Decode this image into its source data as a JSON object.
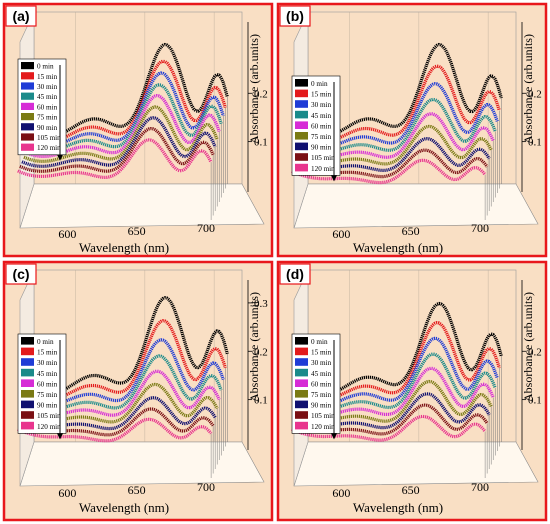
{
  "figure": {
    "colors": {
      "frame": "#e8171c",
      "plot_bg": "#f9dfc4",
      "wall_bg": "#f4ebe1",
      "floor": "#fff8ee",
      "tag_bg": "#ffffff",
      "tag_border": "#e8171c"
    }
  },
  "legend_labels": [
    "0 min",
    "15 min",
    "30 min",
    "45 min",
    "60 min",
    "75 min",
    "90 min",
    "105 min",
    "120 min"
  ],
  "series_colors": [
    "#000000",
    "#e31a1c",
    "#1f3cd6",
    "#1a8a8a",
    "#d62bd6",
    "#7a7a14",
    "#101070",
    "#7a0f14",
    "#e8358e"
  ],
  "chart_data": [
    {
      "type": "line",
      "panel_label": "(a)",
      "style": "3d-waterfall",
      "xlabel": "Wavelength (nm)",
      "ylabel": "Absorbance (arb.units)",
      "x_ticks": [
        "600",
        "650",
        "700"
      ],
      "y_ticks": [
        "0.1",
        "0.2"
      ],
      "xlim": [
        570,
        710
      ],
      "legend_position": "upper-left inside",
      "series_names": [
        "0 min",
        "15 min",
        "30 min",
        "45 min",
        "60 min",
        "75 min",
        "90 min",
        "105 min",
        "120 min"
      ],
      "peaks": [
        {
          "main_nm": 665,
          "main_abs": 0.29,
          "shoulder_nm": 703,
          "shoulder_abs": 0.235
        },
        {
          "main_nm": 665,
          "main_abs": 0.265,
          "shoulder_nm": 703,
          "shoulder_abs": 0.218
        },
        {
          "main_nm": 665,
          "main_abs": 0.25,
          "shoulder_nm": 703,
          "shoulder_abs": 0.208
        },
        {
          "main_nm": 665,
          "main_abs": 0.235,
          "shoulder_nm": 703,
          "shoulder_abs": 0.199
        },
        {
          "main_nm": 665,
          "main_abs": 0.222,
          "shoulder_nm": 703,
          "shoulder_abs": 0.19
        },
        {
          "main_nm": 665,
          "main_abs": 0.208,
          "shoulder_nm": 703,
          "shoulder_abs": 0.18
        },
        {
          "main_nm": 665,
          "main_abs": 0.195,
          "shoulder_nm": 703,
          "shoulder_abs": 0.172
        },
        {
          "main_nm": 665,
          "main_abs": 0.182,
          "shoulder_nm": 703,
          "shoulder_abs": 0.163
        },
        {
          "main_nm": 665,
          "main_abs": 0.168,
          "shoulder_nm": 703,
          "shoulder_abs": 0.155
        }
      ]
    },
    {
      "type": "line",
      "panel_label": "(b)",
      "style": "3d-waterfall",
      "xlabel": "Wavelength (nm)",
      "ylabel": "Absorbance (arb.units)",
      "x_ticks": [
        "600",
        "650",
        "700"
      ],
      "y_ticks": [
        "0.1",
        "0.2"
      ],
      "xlim": [
        570,
        710
      ],
      "legend_position": "left inside",
      "series_names": [
        "0 min",
        "15 min",
        "30 min",
        "45 min",
        "60 min",
        "75 min",
        "90 min",
        "105 min",
        "120 min"
      ],
      "peaks": [
        {
          "main_nm": 665,
          "main_abs": 0.29,
          "shoulder_nm": 703,
          "shoulder_abs": 0.232
        },
        {
          "main_nm": 665,
          "main_abs": 0.255,
          "shoulder_nm": 703,
          "shoulder_abs": 0.21
        },
        {
          "main_nm": 665,
          "main_abs": 0.228,
          "shoulder_nm": 703,
          "shoulder_abs": 0.193
        },
        {
          "main_nm": 665,
          "main_abs": 0.205,
          "shoulder_nm": 703,
          "shoulder_abs": 0.178
        },
        {
          "main_nm": 665,
          "main_abs": 0.185,
          "shoulder_nm": 703,
          "shoulder_abs": 0.165
        },
        {
          "main_nm": 665,
          "main_abs": 0.168,
          "shoulder_nm": 703,
          "shoulder_abs": 0.152
        },
        {
          "main_nm": 665,
          "main_abs": 0.152,
          "shoulder_nm": 703,
          "shoulder_abs": 0.14
        },
        {
          "main_nm": 665,
          "main_abs": 0.138,
          "shoulder_nm": 703,
          "shoulder_abs": 0.13
        },
        {
          "main_nm": 665,
          "main_abs": 0.126,
          "shoulder_nm": 703,
          "shoulder_abs": 0.121
        }
      ]
    },
    {
      "type": "line",
      "panel_label": "(c)",
      "style": "3d-waterfall",
      "xlabel": "Wavelength (nm)",
      "ylabel": "Absorbance (arb.units)",
      "x_ticks": [
        "600",
        "650",
        "700"
      ],
      "y_ticks": [
        "0.1",
        "0.2",
        "0.3"
      ],
      "xlim": [
        570,
        710
      ],
      "legend_position": "left inside",
      "series_names": [
        "0 min",
        "15 min",
        "30 min",
        "45 min",
        "60 min",
        "75 min",
        "90 min",
        "105 min",
        "120 min"
      ],
      "peaks": [
        {
          "main_nm": 665,
          "main_abs": 0.3,
          "shoulder_nm": 703,
          "shoulder_abs": 0.238
        },
        {
          "main_nm": 665,
          "main_abs": 0.262,
          "shoulder_nm": 703,
          "shoulder_abs": 0.212
        },
        {
          "main_nm": 665,
          "main_abs": 0.232,
          "shoulder_nm": 703,
          "shoulder_abs": 0.192
        },
        {
          "main_nm": 665,
          "main_abs": 0.208,
          "shoulder_nm": 703,
          "shoulder_abs": 0.176
        },
        {
          "main_nm": 665,
          "main_abs": 0.186,
          "shoulder_nm": 703,
          "shoulder_abs": 0.162
        },
        {
          "main_nm": 665,
          "main_abs": 0.168,
          "shoulder_nm": 703,
          "shoulder_abs": 0.15
        },
        {
          "main_nm": 665,
          "main_abs": 0.15,
          "shoulder_nm": 703,
          "shoulder_abs": 0.138
        },
        {
          "main_nm": 665,
          "main_abs": 0.136,
          "shoulder_nm": 703,
          "shoulder_abs": 0.128
        },
        {
          "main_nm": 665,
          "main_abs": 0.124,
          "shoulder_nm": 703,
          "shoulder_abs": 0.119
        }
      ]
    },
    {
      "type": "line",
      "panel_label": "(d)",
      "style": "3d-waterfall",
      "xlabel": "Wavelength (nm)",
      "ylabel": "Absorbance (arb.units)",
      "x_ticks": [
        "600",
        "650",
        "700"
      ],
      "y_ticks": [
        "0.1",
        "0.2"
      ],
      "xlim": [
        570,
        710
      ],
      "legend_position": "left inside",
      "series_names": [
        "0 min",
        "15 min",
        "30 min",
        "45 min",
        "60 min",
        "75 min",
        "90 min",
        "105 min",
        "120 min"
      ],
      "peaks": [
        {
          "main_nm": 665,
          "main_abs": 0.288,
          "shoulder_nm": 703,
          "shoulder_abs": 0.232
        },
        {
          "main_nm": 665,
          "main_abs": 0.258,
          "shoulder_nm": 703,
          "shoulder_abs": 0.212
        },
        {
          "main_nm": 665,
          "main_abs": 0.235,
          "shoulder_nm": 703,
          "shoulder_abs": 0.196
        },
        {
          "main_nm": 665,
          "main_abs": 0.212,
          "shoulder_nm": 703,
          "shoulder_abs": 0.181
        },
        {
          "main_nm": 665,
          "main_abs": 0.192,
          "shoulder_nm": 703,
          "shoulder_abs": 0.168
        },
        {
          "main_nm": 665,
          "main_abs": 0.174,
          "shoulder_nm": 703,
          "shoulder_abs": 0.156
        },
        {
          "main_nm": 665,
          "main_abs": 0.158,
          "shoulder_nm": 703,
          "shoulder_abs": 0.145
        },
        {
          "main_nm": 665,
          "main_abs": 0.144,
          "shoulder_nm": 703,
          "shoulder_abs": 0.134
        },
        {
          "main_nm": 665,
          "main_abs": 0.13,
          "shoulder_nm": 703,
          "shoulder_abs": 0.124
        }
      ]
    }
  ]
}
